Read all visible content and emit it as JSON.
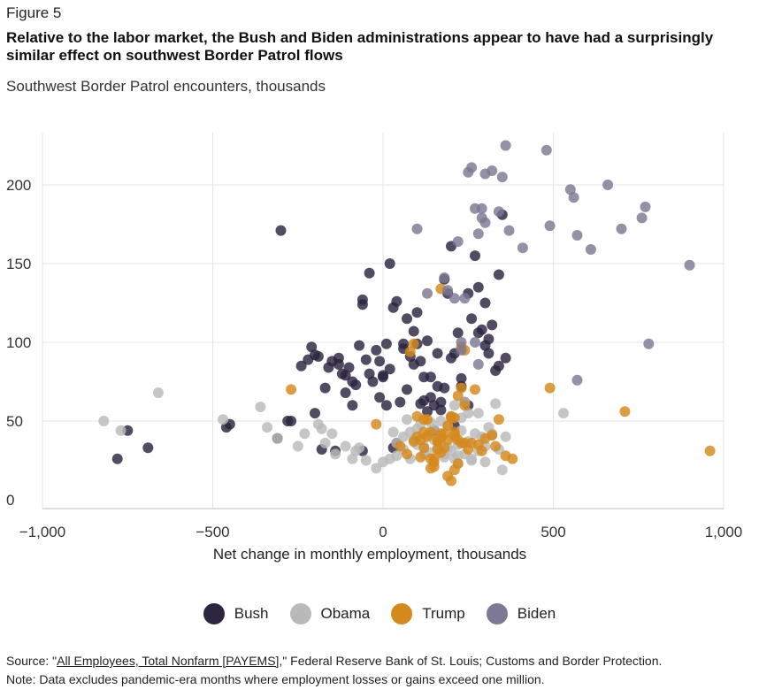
{
  "figure_label": "Figure 5",
  "title": "Relative to the labor market, the Bush and Biden administrations appear to have had a surprisingly similar effect on southwest Border Patrol flows",
  "subtitle": "Southwest Border Patrol encounters, thousands",
  "footer": {
    "source_prefix": "Source: \"",
    "source_link": "All Employees, Total Nonfarm [PAYEMS]",
    "source_suffix": ",\" Federal Reserve Bank of St. Louis; Customs and Border Protection.",
    "note": "Note: Data excludes pandemic-era months where employment losses or gains exceed one million."
  },
  "colors": {
    "Bush": "#2b2540",
    "Obama": "#b9b9b9",
    "Trump": "#d4891c",
    "Biden": "#7d7893",
    "grid": "#e4e4e4"
  },
  "chart_data": {
    "type": "scatter",
    "xlabel": "Net change in monthly employment, thousands",
    "ylabel": "",
    "xlim": [
      -1000,
      1000
    ],
    "ylim": [
      0,
      230
    ],
    "x_ticks": [
      -1000,
      -500,
      0,
      500,
      1000
    ],
    "x_tick_labels": [
      "−1,000",
      "−500",
      "0",
      "500",
      "1,000"
    ],
    "y_ticks": [
      0,
      50,
      100,
      150,
      200
    ],
    "y_tick_labels": [
      "0",
      "50",
      "100",
      "150",
      "200"
    ],
    "grid": true,
    "legend_position": "bottom-center",
    "series": [
      {
        "name": "Bush",
        "points": [
          [
            -780,
            26
          ],
          [
            -750,
            44
          ],
          [
            -690,
            33
          ],
          [
            -460,
            46
          ],
          [
            -450,
            48
          ],
          [
            -300,
            171
          ],
          [
            -310,
            39
          ],
          [
            -280,
            50
          ],
          [
            -240,
            85
          ],
          [
            -220,
            89
          ],
          [
            -210,
            97
          ],
          [
            -200,
            55
          ],
          [
            -190,
            91
          ],
          [
            -170,
            71
          ],
          [
            -160,
            84
          ],
          [
            -150,
            88
          ],
          [
            -140,
            31
          ],
          [
            -130,
            90
          ],
          [
            -120,
            80
          ],
          [
            -110,
            79
          ],
          [
            -100,
            84
          ],
          [
            -90,
            60
          ],
          [
            -80,
            73
          ],
          [
            -70,
            98
          ],
          [
            -60,
            31
          ],
          [
            -40,
            80
          ],
          [
            -30,
            75
          ],
          [
            -20,
            95
          ],
          [
            -10,
            88
          ],
          [
            -10,
            65
          ],
          [
            0,
            78
          ],
          [
            10,
            60
          ],
          [
            20,
            83
          ],
          [
            30,
            122
          ],
          [
            40,
            126
          ],
          [
            50,
            62
          ],
          [
            60,
            96
          ],
          [
            70,
            115
          ],
          [
            80,
            91
          ],
          [
            90,
            107
          ],
          [
            100,
            119
          ],
          [
            110,
            88
          ],
          [
            120,
            63
          ],
          [
            130,
            56
          ],
          [
            140,
            65
          ],
          [
            150,
            60
          ],
          [
            160,
            72
          ],
          [
            170,
            62
          ],
          [
            180,
            140
          ],
          [
            190,
            131
          ],
          [
            200,
            90
          ],
          [
            210,
            93
          ],
          [
            220,
            106
          ],
          [
            230,
            72
          ],
          [
            240,
            62
          ],
          [
            250,
            131
          ],
          [
            260,
            115
          ],
          [
            270,
            155
          ],
          [
            280,
            135
          ],
          [
            290,
            108
          ],
          [
            300,
            125
          ],
          [
            310,
            102
          ],
          [
            320,
            111
          ],
          [
            330,
            82
          ],
          [
            340,
            143
          ],
          [
            350,
            181
          ],
          [
            360,
            90
          ],
          [
            -180,
            32
          ],
          [
            -110,
            68
          ],
          [
            -40,
            144
          ],
          [
            -60,
            124
          ],
          [
            -60,
            127
          ],
          [
            30,
            33
          ],
          [
            40,
            36
          ],
          [
            100,
            99
          ],
          [
            130,
            101
          ],
          [
            160,
            93
          ],
          [
            200,
            161
          ],
          [
            20,
            150
          ],
          [
            0,
            79
          ],
          [
            60,
            99
          ],
          [
            90,
            86
          ],
          [
            120,
            78
          ],
          [
            150,
            44
          ],
          [
            170,
            57
          ],
          [
            210,
            47
          ],
          [
            230,
            77
          ],
          [
            280,
            106
          ],
          [
            300,
            98
          ],
          [
            340,
            85
          ],
          [
            -270,
            50
          ],
          [
            -200,
            92
          ],
          [
            -130,
            86
          ],
          [
            -90,
            75
          ],
          [
            -50,
            89
          ],
          [
            10,
            99
          ],
          [
            70,
            70
          ],
          [
            110,
            61
          ],
          [
            140,
            78
          ],
          [
            180,
            71
          ],
          [
            250,
            60
          ],
          [
            310,
            93
          ]
        ]
      },
      {
        "name": "Obama",
        "points": [
          [
            -820,
            50
          ],
          [
            -770,
            44
          ],
          [
            -660,
            68
          ],
          [
            -470,
            51
          ],
          [
            -360,
            59
          ],
          [
            -340,
            46
          ],
          [
            -310,
            39
          ],
          [
            -250,
            34
          ],
          [
            -230,
            42
          ],
          [
            -190,
            48
          ],
          [
            -180,
            45
          ],
          [
            -170,
            36
          ],
          [
            -140,
            29
          ],
          [
            -110,
            34
          ],
          [
            -90,
            26
          ],
          [
            -80,
            31
          ],
          [
            -50,
            25
          ],
          [
            -20,
            20
          ],
          [
            0,
            24
          ],
          [
            20,
            26
          ],
          [
            40,
            28
          ],
          [
            60,
            32
          ],
          [
            80,
            26
          ],
          [
            100,
            35
          ],
          [
            120,
            29
          ],
          [
            140,
            30
          ],
          [
            160,
            33
          ],
          [
            180,
            29
          ],
          [
            200,
            31
          ],
          [
            220,
            35
          ],
          [
            240,
            29
          ],
          [
            260,
            25
          ],
          [
            280,
            31
          ],
          [
            300,
            34
          ],
          [
            320,
            41
          ],
          [
            340,
            32
          ],
          [
            360,
            40
          ],
          [
            40,
            36
          ],
          [
            80,
            43
          ],
          [
            110,
            48
          ],
          [
            130,
            41
          ],
          [
            150,
            45
          ],
          [
            170,
            40
          ],
          [
            190,
            47
          ],
          [
            210,
            39
          ],
          [
            230,
            44
          ],
          [
            250,
            37
          ],
          [
            270,
            42
          ],
          [
            290,
            40
          ],
          [
            310,
            46
          ],
          [
            330,
            61
          ],
          [
            350,
            19
          ],
          [
            530,
            55
          ],
          [
            60,
            40
          ],
          [
            90,
            38
          ],
          [
            120,
            34
          ],
          [
            150,
            38
          ],
          [
            180,
            27
          ],
          [
            220,
            23
          ],
          [
            260,
            26
          ],
          [
            300,
            24
          ],
          [
            210,
            60
          ],
          [
            240,
            62
          ],
          [
            250,
            55
          ],
          [
            -150,
            42
          ],
          [
            -70,
            33
          ],
          [
            30,
            43
          ],
          [
            70,
            51
          ],
          [
            100,
            45
          ],
          [
            140,
            49
          ],
          [
            170,
            50
          ],
          [
            200,
            53
          ],
          [
            230,
            52
          ],
          [
            280,
            55
          ],
          [
            320,
            42
          ],
          [
            190,
            33
          ],
          [
            210,
            26
          ],
          [
            220,
            28
          ]
        ]
      },
      {
        "name": "Trump",
        "points": [
          [
            -270,
            70
          ],
          [
            -20,
            48
          ],
          [
            50,
            34
          ],
          [
            70,
            29
          ],
          [
            80,
            94
          ],
          [
            90,
            99
          ],
          [
            90,
            37
          ],
          [
            100,
            53
          ],
          [
            110,
            27
          ],
          [
            120,
            43
          ],
          [
            130,
            51
          ],
          [
            140,
            20
          ],
          [
            150,
            24
          ],
          [
            160,
            32
          ],
          [
            170,
            39
          ],
          [
            180,
            33
          ],
          [
            190,
            47
          ],
          [
            200,
            52
          ],
          [
            210,
            41
          ],
          [
            220,
            66
          ],
          [
            230,
            71
          ],
          [
            240,
            60
          ],
          [
            250,
            32
          ],
          [
            260,
            36
          ],
          [
            270,
            70
          ],
          [
            280,
            35
          ],
          [
            290,
            31
          ],
          [
            300,
            39
          ],
          [
            320,
            41
          ],
          [
            330,
            34
          ],
          [
            340,
            51
          ],
          [
            360,
            28
          ],
          [
            380,
            26
          ],
          [
            140,
            43
          ],
          [
            160,
            37
          ],
          [
            180,
            42
          ],
          [
            190,
            15
          ],
          [
            200,
            12
          ],
          [
            210,
            19
          ],
          [
            220,
            23
          ],
          [
            230,
            36
          ],
          [
            240,
            36
          ],
          [
            150,
            26
          ],
          [
            170,
            30
          ],
          [
            190,
            38
          ],
          [
            200,
            53
          ],
          [
            210,
            43
          ],
          [
            220,
            38
          ],
          [
            160,
            38
          ],
          [
            170,
            42
          ],
          [
            120,
            51
          ],
          [
            130,
            40
          ],
          [
            110,
            38
          ],
          [
            150,
            21
          ],
          [
            210,
            52
          ],
          [
            230,
            97
          ],
          [
            240,
            95
          ],
          [
            170,
            134
          ],
          [
            490,
            71
          ],
          [
            710,
            56
          ],
          [
            960,
            31
          ],
          [
            100,
            40
          ],
          [
            120,
            33
          ],
          [
            140,
            26
          ]
        ]
      },
      {
        "name": "Biden",
        "points": [
          [
            100,
            172
          ],
          [
            130,
            131
          ],
          [
            180,
            141
          ],
          [
            190,
            133
          ],
          [
            210,
            128
          ],
          [
            220,
            164
          ],
          [
            230,
            100
          ],
          [
            240,
            128
          ],
          [
            250,
            208
          ],
          [
            260,
            211
          ],
          [
            270,
            185
          ],
          [
            280,
            169
          ],
          [
            290,
            179
          ],
          [
            300,
            207
          ],
          [
            320,
            209
          ],
          [
            340,
            183
          ],
          [
            350,
            205
          ],
          [
            360,
            225
          ],
          [
            370,
            171
          ],
          [
            410,
            160
          ],
          [
            480,
            222
          ],
          [
            490,
            174
          ],
          [
            550,
            197
          ],
          [
            560,
            192
          ],
          [
            570,
            168
          ],
          [
            610,
            159
          ],
          [
            660,
            200
          ],
          [
            700,
            172
          ],
          [
            760,
            179
          ],
          [
            770,
            186
          ],
          [
            780,
            99
          ],
          [
            900,
            149
          ],
          [
            570,
            76
          ],
          [
            290,
            185
          ],
          [
            300,
            176
          ],
          [
            230,
            95
          ],
          [
            270,
            100
          ],
          [
            280,
            86
          ]
        ]
      }
    ]
  }
}
